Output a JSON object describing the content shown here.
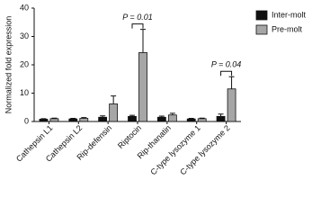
{
  "chart_data": {
    "type": "bar",
    "ylabel": "Normalized fold expression",
    "categories": [
      "Cathepsin L1",
      "Cathepsin L2",
      "Rip-defensin",
      "Riptocin",
      "Rip-thanatin",
      "C-type lysozyme 1",
      "C-type lysozyme 2"
    ],
    "series": [
      {
        "name": "Inter-molt",
        "color": "#111111",
        "values": [
          0.8,
          0.9,
          1.5,
          1.8,
          1.5,
          0.9,
          1.8
        ],
        "errors": [
          0.2,
          0.2,
          0.5,
          0.4,
          0.4,
          0.2,
          0.8
        ]
      },
      {
        "name": "Pre-molt",
        "color": "#a6a6a6",
        "values": [
          1.0,
          1.1,
          6.2,
          24.3,
          2.3,
          1.0,
          11.5
        ],
        "errors": [
          0.2,
          0.3,
          2.8,
          8.2,
          0.6,
          0.2,
          4.3
        ]
      }
    ],
    "annotations": [
      {
        "text": "P = 0.01",
        "category": "Riptocin"
      },
      {
        "text": "P = 0.04",
        "category": "C-type lysozyme 2"
      }
    ],
    "ylim": [
      0,
      40
    ],
    "yticks": [
      0,
      10,
      20,
      30,
      40
    ],
    "legend": "top-right"
  }
}
